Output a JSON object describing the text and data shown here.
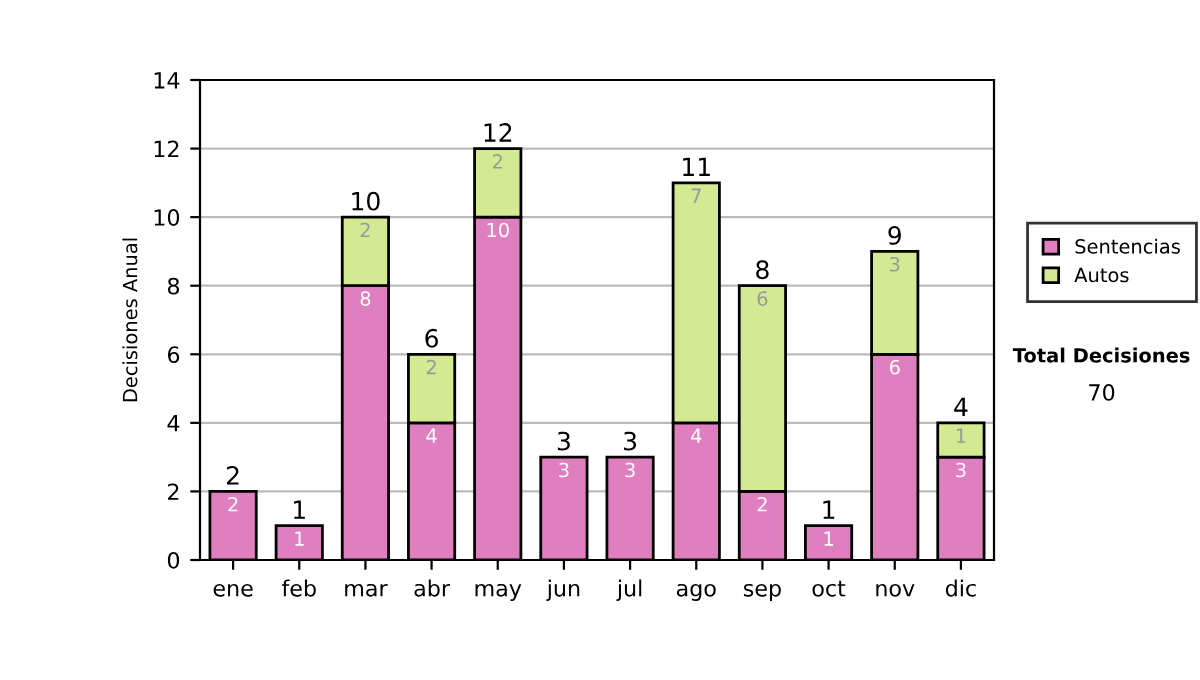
{
  "chart_data": {
    "type": "bar",
    "stacked": true,
    "ylabel": "Decisiones Anual",
    "categories": [
      "ene",
      "feb",
      "mar",
      "abr",
      "may",
      "jun",
      "jul",
      "ago",
      "sep",
      "oct",
      "nov",
      "dic"
    ],
    "series": [
      {
        "name": "Sentencias",
        "color": "#e07fc0",
        "values": [
          2,
          1,
          8,
          4,
          10,
          3,
          3,
          4,
          2,
          1,
          6,
          3
        ],
        "value_labels": [
          "2",
          "1",
          "8",
          "4",
          "10",
          "3",
          "3",
          "4",
          "2",
          "1",
          "6",
          "3"
        ]
      },
      {
        "name": "Autos",
        "color": "#d4ea92",
        "values": [
          null,
          null,
          2,
          2,
          2,
          null,
          null,
          7,
          6,
          null,
          3,
          1
        ],
        "value_labels": [
          null,
          null,
          "2",
          "2",
          "2",
          null,
          null,
          "7",
          "6",
          null,
          "3",
          "1"
        ]
      }
    ],
    "totals": [
      "2",
      "1",
      "10",
      "6",
      "12",
      "3",
      "3",
      "11",
      "8",
      "1",
      "9",
      "4"
    ],
    "ylim": [
      0,
      14
    ],
    "yticks": [
      0,
      2,
      4,
      6,
      8,
      10,
      12,
      14
    ],
    "grid": "y",
    "legend": "right",
    "annotations": [
      "Total Decisiones",
      "70"
    ]
  }
}
